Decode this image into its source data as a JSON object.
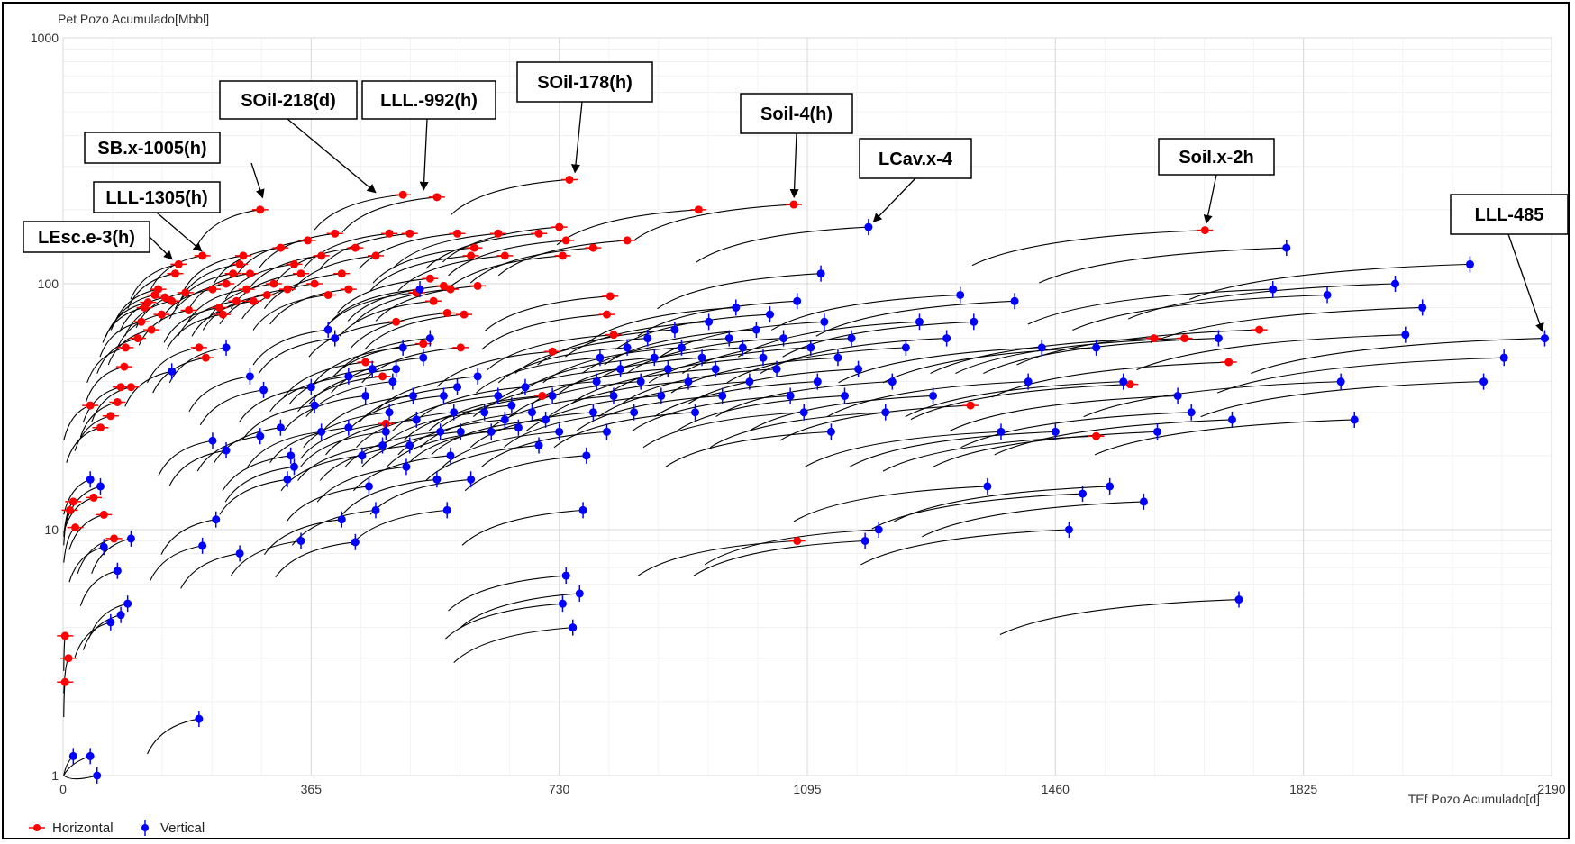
{
  "chart_data": {
    "type": "scatter",
    "title": "",
    "ylabel": "Pet Pozo Acumulado[Mbbl]",
    "xlabel": "TEf Pozo Acumulado[d]",
    "x_ticks": [
      0,
      365,
      730,
      1095,
      1460,
      1825,
      2190
    ],
    "y_ticks": [
      1,
      10,
      100,
      1000
    ],
    "y_scale": "log",
    "xlim": [
      0,
      2190
    ],
    "ylim": [
      1,
      1000
    ],
    "grid": true,
    "legend_placement": "bottom-left",
    "series": [
      {
        "name": "Horizontal",
        "color": "#ff0000",
        "points": [
          [
            3,
            3.7
          ],
          [
            8,
            3.0
          ],
          [
            3,
            2.4
          ],
          [
            10,
            12
          ],
          [
            15,
            13
          ],
          [
            18,
            10.2
          ],
          [
            40,
            32
          ],
          [
            45,
            13.5
          ],
          [
            55,
            26
          ],
          [
            60,
            11.5
          ],
          [
            70,
            29
          ],
          [
            75,
            9.2
          ],
          [
            80,
            33
          ],
          [
            85,
            38
          ],
          [
            90,
            46
          ],
          [
            92,
            55
          ],
          [
            100,
            38
          ],
          [
            110,
            60
          ],
          [
            115,
            70
          ],
          [
            120,
            80
          ],
          [
            125,
            84
          ],
          [
            130,
            65
          ],
          [
            135,
            90
          ],
          [
            140,
            95
          ],
          [
            145,
            75
          ],
          [
            150,
            88
          ],
          [
            160,
            85
          ],
          [
            165,
            110
          ],
          [
            170,
            120
          ],
          [
            180,
            92
          ],
          [
            185,
            78
          ],
          [
            200,
            55
          ],
          [
            205,
            130
          ],
          [
            210,
            50
          ],
          [
            220,
            95
          ],
          [
            230,
            80
          ],
          [
            235,
            75
          ],
          [
            240,
            100
          ],
          [
            250,
            110
          ],
          [
            255,
            85
          ],
          [
            260,
            120
          ],
          [
            265,
            130
          ],
          [
            270,
            95
          ],
          [
            275,
            110
          ],
          [
            280,
            85
          ],
          [
            290,
            200
          ],
          [
            300,
            90
          ],
          [
            310,
            100
          ],
          [
            320,
            140
          ],
          [
            330,
            95
          ],
          [
            340,
            120
          ],
          [
            350,
            110
          ],
          [
            360,
            150
          ],
          [
            370,
            100
          ],
          [
            380,
            130
          ],
          [
            390,
            90
          ],
          [
            400,
            160
          ],
          [
            410,
            110
          ],
          [
            420,
            95
          ],
          [
            430,
            140
          ],
          [
            445,
            48
          ],
          [
            460,
            130
          ],
          [
            470,
            42
          ],
          [
            475,
            27
          ],
          [
            480,
            160
          ],
          [
            490,
            70
          ],
          [
            500,
            230
          ],
          [
            510,
            160
          ],
          [
            520,
            92
          ],
          [
            530,
            57
          ],
          [
            540,
            105
          ],
          [
            545,
            85
          ],
          [
            550,
            225
          ],
          [
            560,
            98
          ],
          [
            565,
            76
          ],
          [
            570,
            95
          ],
          [
            580,
            160
          ],
          [
            585,
            55
          ],
          [
            590,
            75
          ],
          [
            600,
            130
          ],
          [
            605,
            140
          ],
          [
            610,
            98
          ],
          [
            640,
            160
          ],
          [
            650,
            130
          ],
          [
            700,
            160
          ],
          [
            705,
            35
          ],
          [
            720,
            53
          ],
          [
            730,
            170
          ],
          [
            735,
            130
          ],
          [
            740,
            150
          ],
          [
            745,
            265
          ],
          [
            780,
            140
          ],
          [
            800,
            75
          ],
          [
            805,
            89
          ],
          [
            810,
            62
          ],
          [
            830,
            150
          ],
          [
            935,
            200
          ],
          [
            1075,
            210
          ],
          [
            1080,
            9.0
          ],
          [
            1335,
            32
          ],
          [
            1520,
            24
          ],
          [
            1570,
            39
          ],
          [
            1605,
            60
          ],
          [
            1650,
            60
          ],
          [
            1715,
            48
          ],
          [
            1680,
            165
          ],
          [
            1760,
            65
          ]
        ]
      },
      {
        "name": "Vertical",
        "color": "#0000ff",
        "points": [
          [
            15,
            1.2
          ],
          [
            40,
            1.2
          ],
          [
            50,
            1.0
          ],
          [
            40,
            16
          ],
          [
            55,
            15
          ],
          [
            60,
            8.5
          ],
          [
            70,
            4.2
          ],
          [
            80,
            6.8
          ],
          [
            85,
            4.5
          ],
          [
            95,
            5.0
          ],
          [
            100,
            9.2
          ],
          [
            200,
            1.7
          ],
          [
            205,
            8.6
          ],
          [
            220,
            23
          ],
          [
            225,
            11
          ],
          [
            240,
            21
          ],
          [
            260,
            8.0
          ],
          [
            275,
            42
          ],
          [
            295,
            37
          ],
          [
            320,
            26
          ],
          [
            335,
            20
          ],
          [
            340,
            18
          ],
          [
            365,
            38
          ],
          [
            370,
            32
          ],
          [
            380,
            25
          ],
          [
            390,
            65
          ],
          [
            400,
            60
          ],
          [
            410,
            11
          ],
          [
            420,
            42
          ],
          [
            430,
            8.9
          ],
          [
            440,
            20
          ],
          [
            445,
            35
          ],
          [
            450,
            15
          ],
          [
            460,
            12
          ],
          [
            470,
            22
          ],
          [
            475,
            25
          ],
          [
            480,
            30
          ],
          [
            485,
            40
          ],
          [
            490,
            45
          ],
          [
            500,
            55
          ],
          [
            505,
            18
          ],
          [
            510,
            22
          ],
          [
            515,
            35
          ],
          [
            520,
            28
          ],
          [
            525,
            95
          ],
          [
            530,
            50
          ],
          [
            540,
            60
          ],
          [
            550,
            16
          ],
          [
            555,
            25
          ],
          [
            560,
            35
          ],
          [
            565,
            12
          ],
          [
            570,
            20
          ],
          [
            575,
            30
          ],
          [
            580,
            38
          ],
          [
            585,
            25
          ],
          [
            600,
            16
          ],
          [
            610,
            42
          ],
          [
            620,
            30
          ],
          [
            630,
            25
          ],
          [
            640,
            35
          ],
          [
            650,
            28
          ],
          [
            660,
            32
          ],
          [
            670,
            26
          ],
          [
            680,
            38
          ],
          [
            690,
            30
          ],
          [
            700,
            22
          ],
          [
            710,
            28
          ],
          [
            720,
            35
          ],
          [
            730,
            25
          ],
          [
            735,
            5.0
          ],
          [
            740,
            6.5
          ],
          [
            750,
            4.0
          ],
          [
            760,
            5.5
          ],
          [
            765,
            12
          ],
          [
            770,
            20
          ],
          [
            780,
            30
          ],
          [
            785,
            40
          ],
          [
            790,
            50
          ],
          [
            800,
            25
          ],
          [
            810,
            35
          ],
          [
            820,
            45
          ],
          [
            830,
            55
          ],
          [
            840,
            30
          ],
          [
            850,
            40
          ],
          [
            860,
            60
          ],
          [
            870,
            50
          ],
          [
            880,
            35
          ],
          [
            890,
            45
          ],
          [
            900,
            65
          ],
          [
            910,
            55
          ],
          [
            920,
            40
          ],
          [
            930,
            30
          ],
          [
            940,
            50
          ],
          [
            950,
            70
          ],
          [
            960,
            45
          ],
          [
            970,
            35
          ],
          [
            980,
            60
          ],
          [
            990,
            80
          ],
          [
            1000,
            55
          ],
          [
            1010,
            40
          ],
          [
            1020,
            65
          ],
          [
            1030,
            50
          ],
          [
            1040,
            75
          ],
          [
            1050,
            45
          ],
          [
            1060,
            60
          ],
          [
            1070,
            35
          ],
          [
            1080,
            85
          ],
          [
            1090,
            30
          ],
          [
            1100,
            55
          ],
          [
            1110,
            40
          ],
          [
            1120,
            70
          ],
          [
            1130,
            25
          ],
          [
            1140,
            50
          ],
          [
            1150,
            35
          ],
          [
            1160,
            60
          ],
          [
            1170,
            45
          ],
          [
            1180,
            9.0
          ],
          [
            1200,
            10
          ],
          [
            1210,
            30
          ],
          [
            1220,
            40
          ],
          [
            1240,
            55
          ],
          [
            1260,
            70
          ],
          [
            1280,
            35
          ],
          [
            1300,
            60
          ],
          [
            1320,
            90
          ],
          [
            1340,
            70
          ],
          [
            1360,
            15
          ],
          [
            1380,
            25
          ],
          [
            1400,
            85
          ],
          [
            1420,
            40
          ],
          [
            1440,
            55
          ],
          [
            1460,
            25
          ],
          [
            1480,
            10
          ],
          [
            1500,
            14
          ],
          [
            1520,
            55
          ],
          [
            1540,
            15
          ],
          [
            1560,
            40
          ],
          [
            1590,
            13
          ],
          [
            1610,
            25
          ],
          [
            1640,
            35
          ],
          [
            1660,
            30
          ],
          [
            1700,
            60
          ],
          [
            1720,
            28
          ],
          [
            1730,
            5.2
          ],
          [
            1780,
            95
          ],
          [
            1800,
            140
          ],
          [
            1860,
            90
          ],
          [
            1880,
            40
          ],
          [
            1900,
            28
          ],
          [
            1960,
            100
          ],
          [
            1975,
            62
          ],
          [
            2000,
            80
          ],
          [
            2070,
            120
          ],
          [
            2120,
            50
          ],
          [
            2090,
            40
          ],
          [
            2180,
            60
          ],
          [
            160,
            44
          ],
          [
            240,
            55
          ],
          [
            290,
            24
          ],
          [
            330,
            16
          ],
          [
            350,
            9
          ],
          [
            420,
            26
          ],
          [
            455,
            45
          ],
          [
            1115,
            110
          ],
          [
            1185,
            170
          ]
        ]
      }
    ],
    "annotations": [
      {
        "text": "LEsc.e-3(h)",
        "x": 168,
        "y": 120
      },
      {
        "text": "LLL-1305(h)",
        "x": 212,
        "y": 130
      },
      {
        "text": "SB.x-1005(h)",
        "x": 297,
        "y": 210
      },
      {
        "text": "SOil-218(d)",
        "x": 468,
        "y": 225
      },
      {
        "text": "LLL.-992(h)",
        "x": 530,
        "y": 225
      },
      {
        "text": "SOil-178(h)",
        "x": 752,
        "y": 265
      },
      {
        "text": "Soil-4(h)",
        "x": 1075,
        "y": 210
      },
      {
        "text": "LCav.x-4",
        "x": 1185,
        "y": 170
      },
      {
        "text": "Soil.x-2h",
        "x": 1680,
        "y": 165
      },
      {
        "text": "LLL-485",
        "x": 2180,
        "y": 60
      }
    ]
  }
}
